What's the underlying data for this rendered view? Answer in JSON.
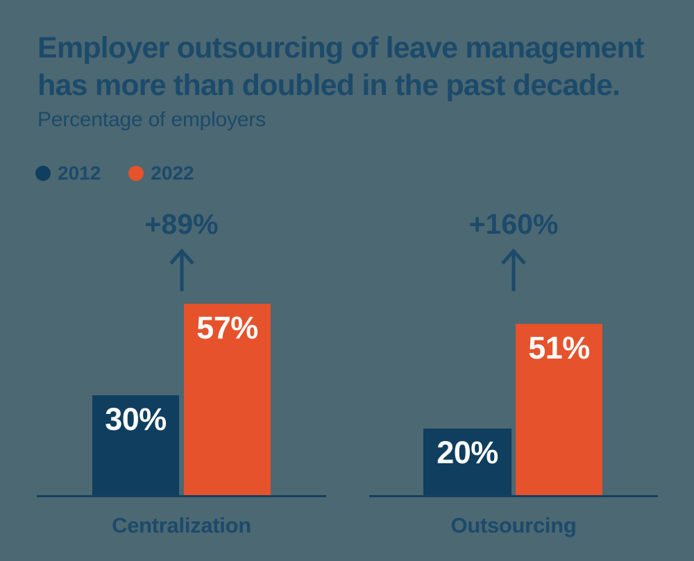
{
  "chart_data": {
    "type": "bar",
    "title": "Employer outsourcing of leave management has more than doubled in the past decade.",
    "title_lines": [
      "Employer outsourcing of leave management",
      "has more than doubled in the past decade."
    ],
    "subtitle": "Percentage of employers",
    "unit": "%",
    "ylim": [
      0,
      60
    ],
    "grid": false,
    "legend_position": "top-left",
    "categories": [
      "Centralization",
      "Outsourcing"
    ],
    "series": [
      {
        "name": "2012",
        "color": "#0F3E5E",
        "values": [
          30,
          20
        ]
      },
      {
        "name": "2022",
        "color": "#E5522B",
        "values": [
          57,
          51
        ]
      }
    ],
    "annotations": [
      {
        "category": "Centralization",
        "text": "+89%"
      },
      {
        "category": "Outsourcing",
        "text": "+160%"
      }
    ]
  },
  "colors": {
    "background": "#4C6872",
    "text_navy": "#1C4A6B",
    "bar_2012": "#0F3E5E",
    "bar_2022": "#E5522B",
    "baseline": "#13405F",
    "value_label": "#FFFFFF"
  }
}
